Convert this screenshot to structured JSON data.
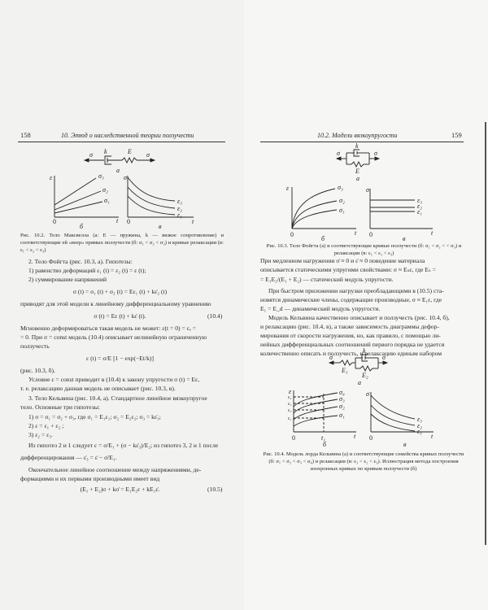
{
  "left_page": {
    "page_number": "158",
    "running_head": "10. Этюд о наследственной теории ползучести",
    "figure": {
      "scheme_labels": {
        "k": "k",
        "E": "E",
        "sigma_left": "σ",
        "sigma_right": "σ",
        "panel": "а"
      },
      "creep": {
        "y_axis": "ε",
        "x_axis": "t",
        "origin": "0",
        "curves": [
          "σ₃",
          "σ₂",
          "σ₁"
        ],
        "panel": "б"
      },
      "relax": {
        "y_axis": "σ",
        "x_axis": "t",
        "origin": "0",
        "curves": [
          "ε₃",
          "ε₂",
          "ε₁"
        ],
        "panel": "в"
      },
      "caption": "Рис. 10.2. Тело Максвелла (а: E — пружина, k — вязкое сопротивление) и соответствующие ей «веер» прямых ползучести (б: σ₁ < σ₂ < σ₃) и кривые релаксации (в: ε₁ < ε₂ < ε₃)"
    },
    "lines": [
      "2. Тело Фойгта (рис. 10.3, а). Гипотезы:",
      "1) равенство деформаций ε₁ (t) = ε₂ (t) = ε (t);",
      "2) суммирование напряжений",
      "σ (t) = σ₁ (t) + σ₂ (t) = Eε₁ (t) + kε̇₂ (t)",
      "приводят для этой модели к линейному дифференциальному уравнению",
      "σ (t) = Eε (t) + kε̇ (t).",
      "Мгновенно деформироваться такая модель не может: ε(t = 0) = εₑ =",
      "= 0. При σ = const модель (10.4) описывает нелинейную ограниченную",
      "ползучесть",
      "ε (t) = σ/E [1 − exp(−Et/k)]",
      "(рис. 10.3, б).",
      "Условие ε = const приводит в (10.4) к закону упругости σ (t) = Eε,",
      "т. е. релаксацию данная модель не описывает (рис. 10.3, в).",
      "3. Тело Кельвина (рис. 10.4, а). Стандартное линейное вязкоупругое",
      "тело. Основные три гипотезы:",
      "1) σ = σ₁ = σ₂ + σ₃, где σ₁ = E₁ε₁; σ₂ = E₂ε₂; σ₃ = kε̇₃;",
      "2) ε = ε₁ + ε₂ ;",
      "3) ε₂ = ε₃.",
      "Из гипотез 2 и 1 следует ε = σ/E₁ + (σ − kε̇₃)/E₂; из гипотез 3, 2 и 1 после",
      "дифференцирования — ε̇₃ = ε̇ − σ̇/E₁.",
      "Окончательное линейное соотношение между напряжениями, де-",
      "формациями и их первыми производными имеет вид",
      "(E₁ + E₂)σ + kσ̇ = E₁E₂ε + kE₁ε̇."
    ],
    "eq_numbers": [
      "(10.4)",
      "(10.5)"
    ]
  },
  "right_page": {
    "page_number": "159",
    "running_head": "10.2. Модели вязкоупругости",
    "figure_3": {
      "scheme_labels": {
        "k": "k",
        "E": "E",
        "sigma_left": "σ",
        "sigma_right": "σ",
        "panel": "а"
      },
      "creep": {
        "y_axis": "ε",
        "x_axis": "t",
        "origin": "0",
        "curves": [
          "σ₃",
          "σ₂",
          "σ₁"
        ],
        "panel": "б"
      },
      "relax": {
        "y_axis": "σ",
        "x_axis": "t",
        "origin": "0",
        "curves": [
          "ε₃",
          "ε₂",
          "ε₁"
        ],
        "panel": "в"
      },
      "caption": "Рис. 10.3. Тело Фойгта (а) и соответствующие кривые ползучести (б: σ₁ < σ₂ < < σ₃) и релаксации (в: ε₁ < ε₂ < ε₃)"
    },
    "lines": [
      "При медленном нагружении σ̇ ≈ 0 и ε̇ ≈ 0 поведение материала",
      "описывается статическими упругими свойствами: σ ≈ Eₛε, где Eₛ =",
      "= E₁E₂/(E₁ + E₂) — статический модуль упругости.",
      "При быстром приложении нагрузки преобладающими в (10.5) ста-",
      "новятся динамические члены, содержащие производные, σ ≈ E₁ε, где",
      "E₁ = E_d — динамический модуль упругости.",
      "Модель Кельвина качественно описывает и ползучесть (рис. 10.4, б),",
      "и релаксацию (рис. 10.4, в), а также зависимость диаграммы дефор-",
      "мирования от скорости нагружения, но, как правило, с помощью ли-",
      "нейных дифференциальных соотношений первого порядка не удается",
      "количественно описать и ползучесть, и релаксацию единым набором"
    ],
    "figure_4": {
      "scheme_labels": {
        "k": "k",
        "E1": "E₁",
        "E2": "E₂",
        "sigma_left": "σ",
        "sigma_right": "σ",
        "panel": "а"
      },
      "creep": {
        "y_axis": "ε",
        "x_axis": "t",
        "origin": "0",
        "t1": "t₁",
        "curves": [
          "σ₄",
          "σ₃",
          "σ₂",
          "σ₁"
        ],
        "eps_ticks": [
          "ε₄",
          "ε₃",
          "ε₂",
          "ε₁"
        ],
        "panel": "б"
      },
      "relax": {
        "y_axis": "σ",
        "x_axis": "t",
        "origin": "0",
        "curves": [
          "ε₃",
          "ε₂",
          "ε₁"
        ],
        "panel": "в"
      },
      "caption": "Рис. 10.4. Модель лорда Кельвина (а) и соответствующие семейства кривых ползучести (б: σ₁ < σ₂ < σ₃ < σ₄) и релаксации (в: ε₁ < ε₂ < ε₃). Иллюстрация метода построения изохронных кривых по кривым ползучести (б)"
    }
  }
}
